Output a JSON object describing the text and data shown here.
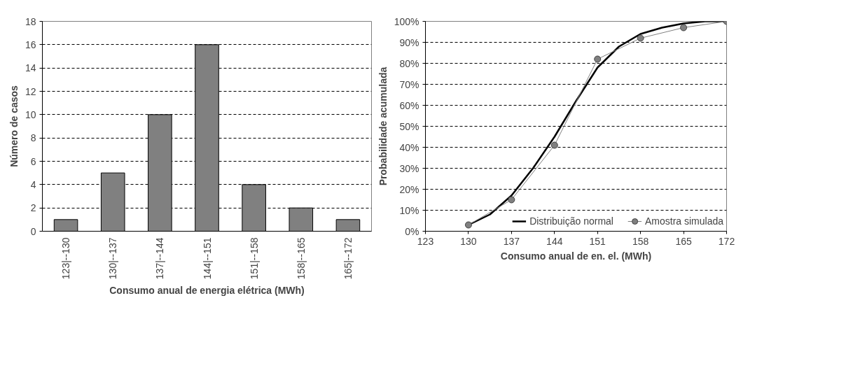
{
  "chart_data": [
    {
      "type": "bar",
      "xlabel": "Consumo anual de energia elétrica (MWh)",
      "ylabel": "Número de casos",
      "categories": [
        "123|--130",
        "130|--137",
        "137|--144",
        "144|--151",
        "151|--158",
        "158|--165",
        "165|--172"
      ],
      "values": [
        1,
        5,
        10,
        16,
        4,
        2,
        1
      ],
      "color": "#808080",
      "ylim": [
        0,
        18
      ],
      "yticks": [
        0,
        2,
        4,
        6,
        8,
        10,
        12,
        14,
        16,
        18
      ],
      "grid": "y"
    },
    {
      "type": "line",
      "xlabel": "Consumo anual de en. el. (MWh)",
      "ylabel": "Probabilidade acumulada",
      "xlim": [
        123,
        172
      ],
      "xticks": [
        123,
        130,
        137,
        144,
        151,
        158,
        165,
        172
      ],
      "ylim": [
        0,
        100
      ],
      "yticks": [
        {
          "value": 0,
          "label": "0%"
        },
        {
          "value": 10,
          "label": "10%"
        },
        {
          "value": 20,
          "label": "20%"
        },
        {
          "value": 30,
          "label": "30%"
        },
        {
          "value": 40,
          "label": "40%"
        },
        {
          "value": 50,
          "label": "50%"
        },
        {
          "value": 60,
          "label": "60%"
        },
        {
          "value": 70,
          "label": "70%"
        },
        {
          "value": 80,
          "label": "80%"
        },
        {
          "value": 90,
          "label": "90%"
        },
        {
          "value": 100,
          "label": "100%"
        }
      ],
      "grid": "y",
      "legend": "bottom right",
      "series": [
        {
          "name": "Distribuição normal",
          "color": "#000000",
          "marker": "none",
          "x": [
            130,
            133.5,
            137,
            140.5,
            144,
            147.5,
            151,
            154.5,
            158,
            161.5,
            165,
            168.5,
            172
          ],
          "values": [
            3,
            8,
            17,
            30,
            45,
            62,
            78,
            88,
            94,
            97,
            99,
            100,
            100
          ]
        },
        {
          "name": "Amostra simulada",
          "color": "#808080",
          "marker": "circle",
          "x": [
            130,
            137,
            144,
            151,
            158,
            165,
            172
          ],
          "values": [
            3,
            15,
            41,
            82,
            92,
            97,
            100
          ]
        }
      ]
    }
  ]
}
